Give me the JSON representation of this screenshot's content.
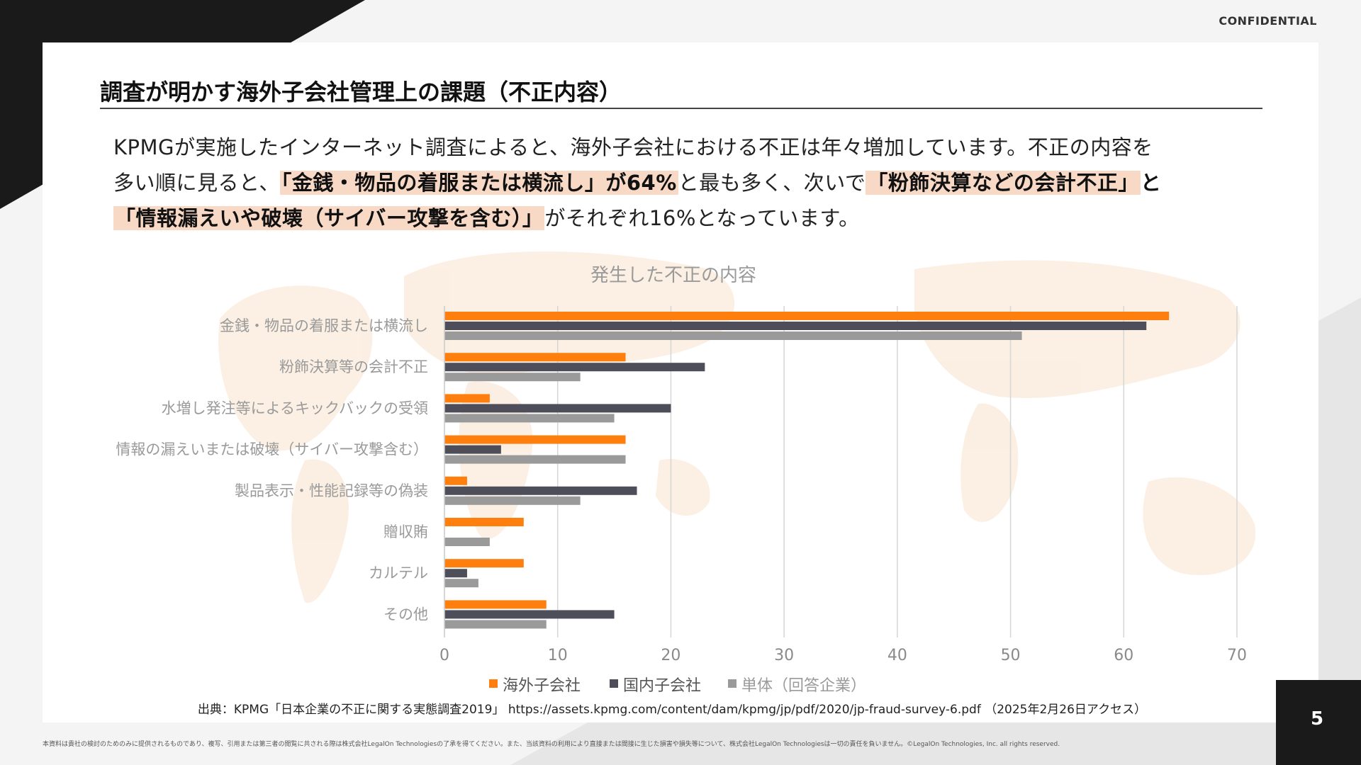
{
  "header": {
    "confidential": "CONFIDENTIAL",
    "title": "調査が明かす海外子会社管理上の課題（不正内容）"
  },
  "body": {
    "s1": "KPMGが実施したインターネット調査によると、海外子会社における不正は年々増加しています。不正の内容を",
    "s2": "多い順に見ると、",
    "h1": "「金銭・物品の着服または横流し」が64%",
    "s3": "と最も多く、次いで",
    "h2": "「粉飾決算などの会計不正」",
    "s4": "と",
    "h3": "「情報漏えいや破壊（サイバー攻撃を含む）」",
    "s5": "がそれぞれ16%となっています。"
  },
  "chart_data": {
    "type": "bar",
    "orientation": "horizontal",
    "title": "発生した不正の内容",
    "categories": [
      "金銭・物品の着服または横流し",
      "粉飾決算等の会計不正",
      "水増し発注等によるキックバックの受領",
      "情報の漏えいまたは破壊（サイバー攻撃含む）",
      "製品表示・性能記録等の偽装",
      "贈収賄",
      "カルテル",
      "その他"
    ],
    "series": [
      {
        "name": "海外子会社",
        "color": "#ff7f0e",
        "values": [
          64,
          16,
          4,
          16,
          2,
          7,
          7,
          9
        ]
      },
      {
        "name": "国内子会社",
        "color": "#4e4e5a",
        "values": [
          62,
          23,
          20,
          5,
          17,
          0,
          2,
          15
        ]
      },
      {
        "name": "単体（回答企業）",
        "color": "#9a9a9a",
        "values": [
          51,
          12,
          15,
          16,
          12,
          4,
          3,
          9
        ]
      }
    ],
    "xlim": [
      0,
      70
    ],
    "xticks": [
      "0",
      "10",
      "20",
      "30",
      "40",
      "50",
      "60",
      "70"
    ],
    "grid": true,
    "legend": "bottom"
  },
  "source": "出典：KPMG「日本企業の不正に関する実態調査2019」 https://assets.kpmg.com/content/dam/kpmg/jp/pdf/2020/jp-fraud-survey-6.pdf （2025年2月26日アクセス）",
  "footer": {
    "note": "本資料は貴社の検討のためのみに提供されるものであり、複写、引用または第三者の閲覧に共される際は株式会社LegalOn Technologiesの了承を得てください。また、当該資料の利用により直接または間接に生じた損害や損失等について、株式会社LegalOn Technologiesは一切の責任を負いません。©LegalOn Technologies, Inc. all rights reserved.",
    "page_number": "5"
  }
}
